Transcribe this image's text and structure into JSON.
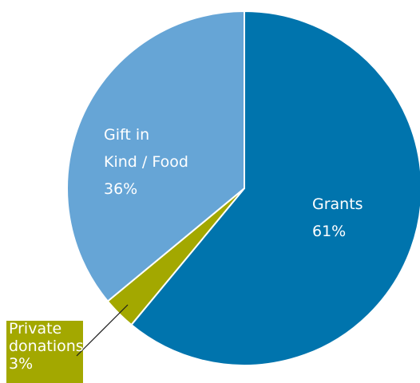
{
  "chart_data": {
    "type": "pie",
    "title": "",
    "slices": [
      {
        "label": "Grants",
        "value": 61,
        "value_label": "61%",
        "color": "#0074ad",
        "label_lines": [
          "Grants",
          "61%"
        ]
      },
      {
        "label": "Private donations",
        "value": 3,
        "value_label": "3%",
        "color": "#a3a800",
        "label_lines": [
          "Private",
          "donations",
          "3%"
        ]
      },
      {
        "label": "Gift in Kind / Food",
        "value": 36,
        "value_label": "36%",
        "color": "#66a5d6",
        "label_lines": [
          "Gift in",
          "Kind / Food",
          "36%"
        ]
      }
    ],
    "start_angle": "12 o'clock",
    "direction": "clockwise",
    "legend": "none",
    "label_text_color": "#ffffff",
    "leader_line_color": "#1a1a1a"
  }
}
